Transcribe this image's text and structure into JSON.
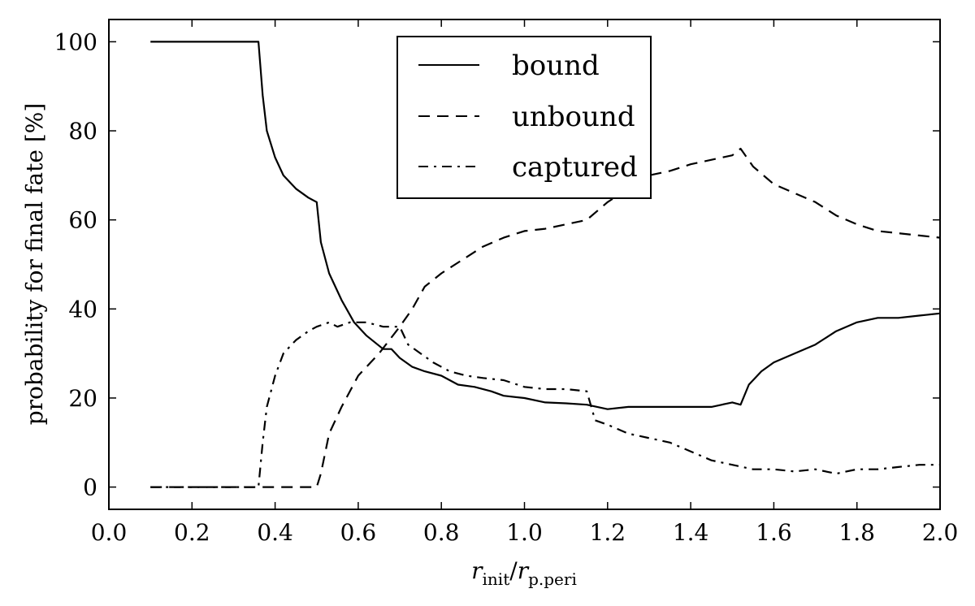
{
  "chart_data": {
    "type": "line",
    "title": "",
    "xlabel": {
      "var": "r",
      "sub": "init",
      "sep": "/",
      "var2": "r",
      "sub2": "p.peri"
    },
    "ylabel": "probability for final fate [%]",
    "xlim": [
      0.0,
      2.0
    ],
    "ylim": [
      -5,
      105
    ],
    "xticks": [
      0.0,
      0.2,
      0.4,
      0.6,
      0.8,
      1.0,
      1.2,
      1.4,
      1.6,
      1.8,
      2.0
    ],
    "xtick_labels": [
      "0.0",
      "0.2",
      "0.4",
      "0.6",
      "0.8",
      "1.0",
      "1.2",
      "1.4",
      "1.6",
      "1.8",
      "2.0"
    ],
    "yticks": [
      0,
      20,
      40,
      60,
      80,
      100
    ],
    "ytick_labels": [
      "0",
      "20",
      "40",
      "60",
      "80",
      "100"
    ],
    "grid": false,
    "legend_position": "top-center",
    "series": [
      {
        "name": "bound",
        "style": "solid",
        "points": [
          [
            0.1,
            100
          ],
          [
            0.2,
            100
          ],
          [
            0.3,
            100
          ],
          [
            0.36,
            100
          ],
          [
            0.37,
            88
          ],
          [
            0.38,
            80
          ],
          [
            0.4,
            74
          ],
          [
            0.42,
            70
          ],
          [
            0.45,
            67
          ],
          [
            0.48,
            65
          ],
          [
            0.5,
            64
          ],
          [
            0.51,
            55
          ],
          [
            0.53,
            48
          ],
          [
            0.56,
            42
          ],
          [
            0.59,
            37
          ],
          [
            0.62,
            34
          ],
          [
            0.66,
            31
          ],
          [
            0.68,
            31
          ],
          [
            0.7,
            29
          ],
          [
            0.73,
            27
          ],
          [
            0.76,
            26
          ],
          [
            0.8,
            25
          ],
          [
            0.84,
            23
          ],
          [
            0.88,
            22.5
          ],
          [
            0.92,
            21.5
          ],
          [
            0.95,
            20.5
          ],
          [
            1.0,
            20
          ],
          [
            1.05,
            19
          ],
          [
            1.1,
            18.8
          ],
          [
            1.15,
            18.5
          ],
          [
            1.2,
            17.5
          ],
          [
            1.25,
            18
          ],
          [
            1.3,
            18
          ],
          [
            1.35,
            18
          ],
          [
            1.4,
            18
          ],
          [
            1.45,
            18
          ],
          [
            1.5,
            19
          ],
          [
            1.52,
            18.5
          ],
          [
            1.54,
            23
          ],
          [
            1.57,
            26
          ],
          [
            1.6,
            28
          ],
          [
            1.65,
            30
          ],
          [
            1.7,
            32
          ],
          [
            1.75,
            35
          ],
          [
            1.8,
            37
          ],
          [
            1.85,
            38
          ],
          [
            1.9,
            38
          ],
          [
            1.95,
            38.5
          ],
          [
            2.0,
            39
          ]
        ]
      },
      {
        "name": "unbound",
        "style": "dashed",
        "points": [
          [
            0.1,
            0
          ],
          [
            0.2,
            0
          ],
          [
            0.3,
            0
          ],
          [
            0.4,
            0
          ],
          [
            0.5,
            0
          ],
          [
            0.51,
            3
          ],
          [
            0.53,
            12
          ],
          [
            0.56,
            18
          ],
          [
            0.6,
            25
          ],
          [
            0.65,
            30
          ],
          [
            0.7,
            36
          ],
          [
            0.73,
            40
          ],
          [
            0.76,
            45
          ],
          [
            0.8,
            48
          ],
          [
            0.85,
            51
          ],
          [
            0.9,
            54
          ],
          [
            0.95,
            56
          ],
          [
            1.0,
            57.5
          ],
          [
            1.05,
            58
          ],
          [
            1.1,
            59
          ],
          [
            1.15,
            60
          ],
          [
            1.2,
            64
          ],
          [
            1.25,
            67
          ],
          [
            1.3,
            70
          ],
          [
            1.35,
            71
          ],
          [
            1.4,
            72.5
          ],
          [
            1.45,
            73.5
          ],
          [
            1.5,
            74.5
          ],
          [
            1.52,
            76
          ],
          [
            1.55,
            72
          ],
          [
            1.6,
            68
          ],
          [
            1.65,
            66
          ],
          [
            1.7,
            64
          ],
          [
            1.75,
            61
          ],
          [
            1.8,
            59
          ],
          [
            1.85,
            57.5
          ],
          [
            1.9,
            57
          ],
          [
            1.95,
            56.5
          ],
          [
            2.0,
            56
          ]
        ]
      },
      {
        "name": "captured",
        "style": "dashdot",
        "points": [
          [
            0.1,
            0
          ],
          [
            0.2,
            0
          ],
          [
            0.3,
            0
          ],
          [
            0.36,
            0
          ],
          [
            0.37,
            10
          ],
          [
            0.38,
            18
          ],
          [
            0.4,
            25
          ],
          [
            0.42,
            30
          ],
          [
            0.45,
            33
          ],
          [
            0.48,
            35
          ],
          [
            0.5,
            36
          ],
          [
            0.53,
            37
          ],
          [
            0.55,
            36
          ],
          [
            0.58,
            37
          ],
          [
            0.62,
            37
          ],
          [
            0.66,
            36
          ],
          [
            0.7,
            36
          ],
          [
            0.72,
            32
          ],
          [
            0.75,
            30
          ],
          [
            0.78,
            28
          ],
          [
            0.82,
            26
          ],
          [
            0.86,
            25
          ],
          [
            0.9,
            24.5
          ],
          [
            0.95,
            24
          ],
          [
            1.0,
            22.5
          ],
          [
            1.05,
            22
          ],
          [
            1.1,
            22
          ],
          [
            1.15,
            21.5
          ],
          [
            1.17,
            15
          ],
          [
            1.2,
            14
          ],
          [
            1.25,
            12
          ],
          [
            1.3,
            11
          ],
          [
            1.35,
            10
          ],
          [
            1.4,
            8
          ],
          [
            1.45,
            6
          ],
          [
            1.5,
            5
          ],
          [
            1.55,
            4
          ],
          [
            1.6,
            4
          ],
          [
            1.65,
            3.5
          ],
          [
            1.7,
            4
          ],
          [
            1.75,
            3
          ],
          [
            1.8,
            4
          ],
          [
            1.85,
            4
          ],
          [
            1.9,
            4.5
          ],
          [
            1.95,
            5
          ],
          [
            2.0,
            5
          ]
        ]
      }
    ]
  }
}
